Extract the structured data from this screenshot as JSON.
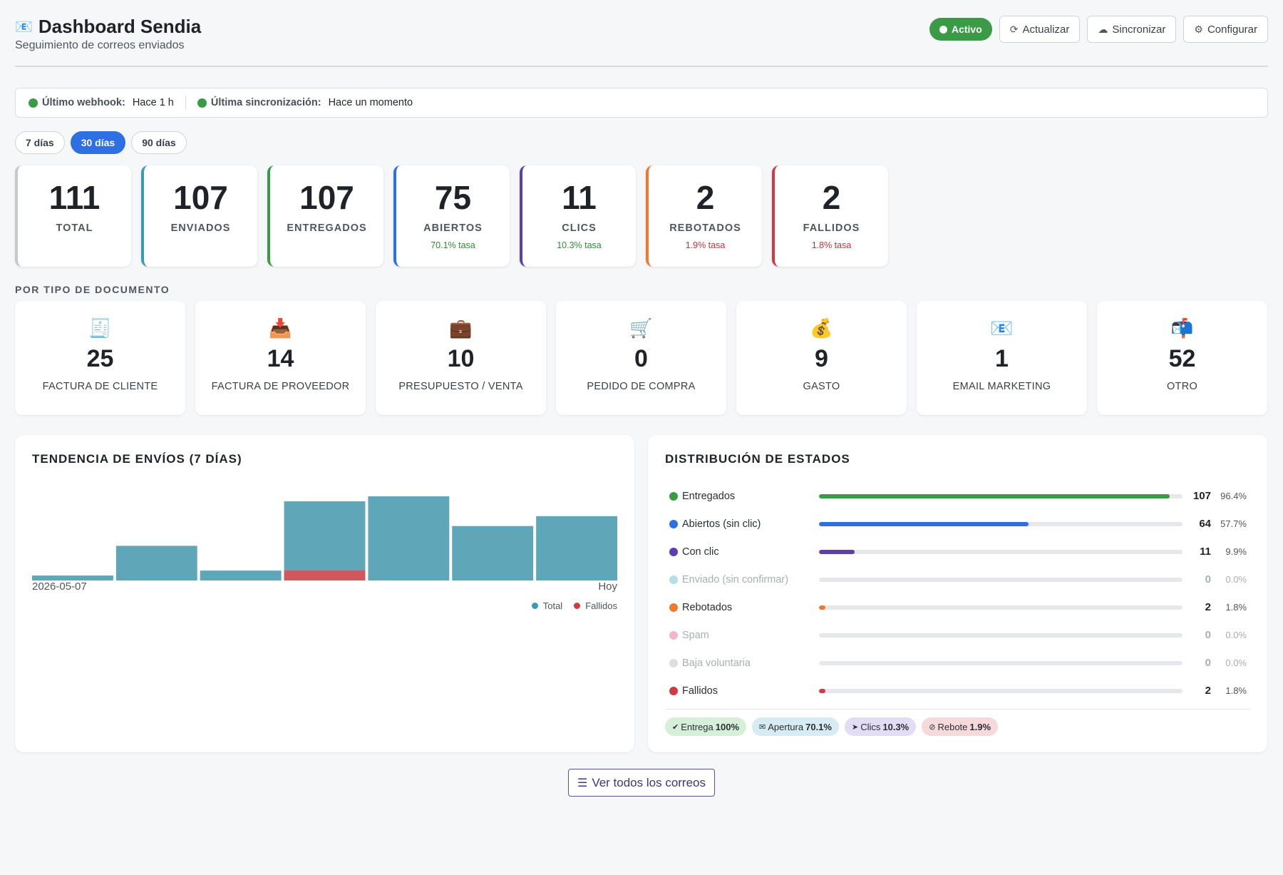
{
  "header": {
    "title_icon": "envelope-icon",
    "title": "Dashboard Sendia",
    "subtitle": "Seguimiento de correos enviados",
    "status_badge": "Activo",
    "buttons": {
      "refresh": "Actualizar",
      "sync": "Sincronizar",
      "configure": "Configurar"
    }
  },
  "statusbar": {
    "webhook_label": "Último webhook:",
    "webhook_value": "Hace 1 h",
    "sync_label": "Última sincronización:",
    "sync_value": "Hace un momento"
  },
  "range_tabs": [
    {
      "label": "7 días",
      "active": false
    },
    {
      "label": "30 días",
      "active": true
    },
    {
      "label": "90 días",
      "active": false
    }
  ],
  "stats": [
    {
      "value": "111",
      "label": "TOTAL",
      "rate": "",
      "color": "#c5c9cf",
      "rate_color": ""
    },
    {
      "value": "107",
      "label": "ENVIADOS",
      "rate": "",
      "color": "#3b9ab5",
      "rate_color": ""
    },
    {
      "value": "107",
      "label": "ENTREGADOS",
      "rate": "",
      "color": "#3a9a46",
      "rate_color": ""
    },
    {
      "value": "75",
      "label": "ABIERTOS",
      "rate": "70.1% tasa",
      "color": "#2f6fe4",
      "rate_color": "#2f8a3a"
    },
    {
      "value": "11",
      "label": "CLICS",
      "rate": "10.3% tasa",
      "color": "#5b3fb0",
      "rate_color": "#2f8a3a"
    },
    {
      "value": "2",
      "label": "REBOTADOS",
      "rate": "1.9% tasa",
      "color": "#ee7a2c",
      "rate_color": "#c8323c"
    },
    {
      "value": "2",
      "label": "FALLIDOS",
      "rate": "1.8% tasa",
      "color": "#d13a40",
      "rate_color": "#c8323c"
    }
  ],
  "doc_section_label": "POR TIPO DE DOCUMENTO",
  "doc_types": [
    {
      "icon": "receipt-icon",
      "glyph": "🧾",
      "value": "25",
      "label": "FACTURA DE CLIENTE"
    },
    {
      "icon": "inbox-tray-icon",
      "glyph": "📥",
      "value": "14",
      "label": "FACTURA DE PROVEEDOR"
    },
    {
      "icon": "briefcase-icon",
      "glyph": "💼",
      "value": "10",
      "label": "PRESUPUESTO / VENTA"
    },
    {
      "icon": "shopping-cart-icon",
      "glyph": "🛒",
      "value": "0",
      "label": "PEDIDO DE COMPRA"
    },
    {
      "icon": "money-bag-icon",
      "glyph": "💰",
      "value": "9",
      "label": "GASTO"
    },
    {
      "icon": "envelope-icon",
      "glyph": "📧",
      "value": "1",
      "label": "EMAIL MARKETING"
    },
    {
      "icon": "mailbox-icon",
      "glyph": "📬",
      "value": "52",
      "label": "OTRO"
    }
  ],
  "trend": {
    "title": "TENDENCIA DE ENVÍOS (7 DÍAS)",
    "x_start": "2026-05-07",
    "x_end": "Hoy",
    "legend_total": "Total",
    "legend_failed": "Fallidos",
    "color_total": "#5fa6b8",
    "color_failed": "#d4555d"
  },
  "chart_data": {
    "type": "bar",
    "categories": [
      "2026-05-07",
      "",
      "",
      "",
      "",
      "",
      "Hoy"
    ],
    "series": [
      {
        "name": "Total",
        "values": [
          1,
          7,
          2,
          16,
          17,
          11,
          13
        ]
      },
      {
        "name": "Fallidos",
        "values": [
          0,
          0,
          0,
          2,
          0,
          0,
          0
        ]
      }
    ],
    "title": "TENDENCIA DE ENVÍOS (7 DÍAS)",
    "ylim": [
      0,
      17
    ],
    "legend": "bottom-right",
    "grid": false
  },
  "distribution": {
    "title": "DISTRIBUCIÓN DE ESTADOS",
    "rows": [
      {
        "name": "Entregados",
        "count": "107",
        "pct": "96.4%",
        "fraction": 0.964,
        "color": "#3a9a46",
        "muted": false
      },
      {
        "name": "Abiertos (sin clic)",
        "count": "64",
        "pct": "57.7%",
        "fraction": 0.577,
        "color": "#2f6fe4",
        "muted": false
      },
      {
        "name": "Con clic",
        "count": "11",
        "pct": "9.9%",
        "fraction": 0.099,
        "color": "#5b3fb0",
        "muted": false
      },
      {
        "name": "Enviado (sin confirmar)",
        "count": "0",
        "pct": "0.0%",
        "fraction": 0,
        "color": "#b9dde6",
        "muted": true
      },
      {
        "name": "Rebotados",
        "count": "2",
        "pct": "1.8%",
        "fraction": 0.018,
        "color": "#ee7a2c",
        "muted": false
      },
      {
        "name": "Spam",
        "count": "0",
        "pct": "0.0%",
        "fraction": 0,
        "color": "#f3b6cf",
        "muted": true
      },
      {
        "name": "Baja voluntaria",
        "count": "0",
        "pct": "0.0%",
        "fraction": 0,
        "color": "#dcdee1",
        "muted": true
      },
      {
        "name": "Fallidos",
        "count": "2",
        "pct": "1.8%",
        "fraction": 0.018,
        "color": "#d13a40",
        "muted": false
      }
    ],
    "kpis": [
      {
        "icon": "check-circle-icon",
        "glyph": "✔",
        "label": "Entrega",
        "value": "100%",
        "bg": "#d6efd9"
      },
      {
        "icon": "envelope-open-icon",
        "glyph": "✉",
        "label": "Apertura",
        "value": "70.1%",
        "bg": "#d6ecf2"
      },
      {
        "icon": "cursor-icon",
        "glyph": "➤",
        "label": "Clics",
        "value": "10.3%",
        "bg": "#e3dcf5"
      },
      {
        "icon": "ban-icon",
        "glyph": "⊘",
        "label": "Rebote",
        "value": "1.9%",
        "bg": "#f6d9db"
      }
    ]
  },
  "footer": {
    "view_all": "Ver todos los correos",
    "icon": "list-icon"
  }
}
